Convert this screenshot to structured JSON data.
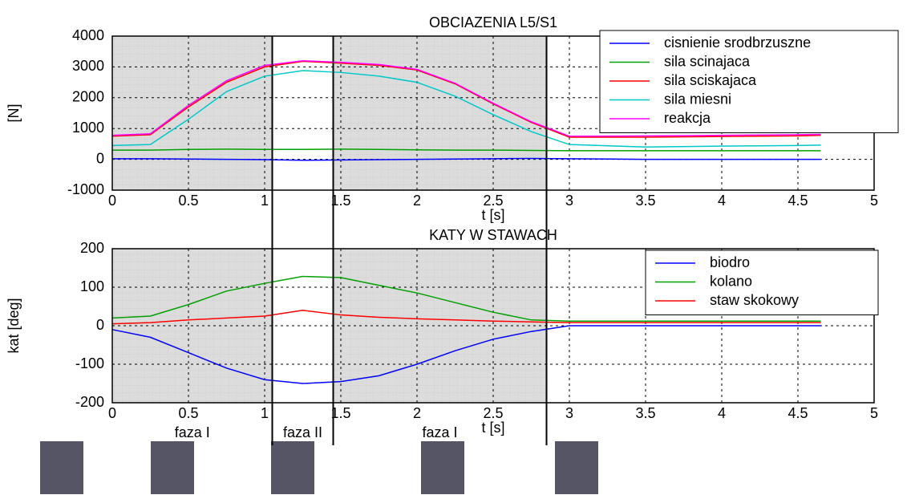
{
  "chart_data": [
    {
      "type": "line",
      "title": "OBCIAZENIA L5/S1",
      "xlabel": "t [s]",
      "ylabel": "[N]",
      "x": [
        0,
        0.25,
        0.5,
        0.75,
        1,
        1.25,
        1.5,
        1.75,
        2,
        2.25,
        2.5,
        2.75,
        3,
        3.5,
        4,
        4.5,
        4.65
      ],
      "series": [
        {
          "name": "cisnienie srodbrzuszne",
          "color": "#0000ff",
          "values": [
            20,
            20,
            10,
            0,
            -10,
            -30,
            -20,
            -10,
            0,
            10,
            20,
            30,
            20,
            0,
            0,
            0,
            0
          ]
        },
        {
          "name": "sila scinajaca",
          "color": "#00a000",
          "values": [
            300,
            300,
            320,
            330,
            320,
            320,
            330,
            320,
            310,
            300,
            300,
            290,
            280,
            280,
            280,
            280,
            280
          ]
        },
        {
          "name": "sila sciskajaca",
          "color": "#ff0000",
          "values": [
            750,
            800,
            1700,
            2500,
            3000,
            3180,
            3120,
            3050,
            2900,
            2450,
            1800,
            1200,
            720,
            720,
            740,
            760,
            780
          ]
        },
        {
          "name": "sila miesni",
          "color": "#00c8c8",
          "values": [
            450,
            480,
            1300,
            2200,
            2700,
            2880,
            2820,
            2700,
            2500,
            2050,
            1450,
            900,
            480,
            400,
            430,
            450,
            460
          ]
        },
        {
          "name": "reakcja",
          "color": "#ff00ff",
          "values": [
            780,
            830,
            1750,
            2550,
            3050,
            3200,
            3150,
            3080,
            2920,
            2470,
            1820,
            1220,
            750,
            760,
            780,
            800,
            810
          ]
        }
      ],
      "xlim": [
        0,
        5
      ],
      "xticks": [
        0,
        0.5,
        1,
        1.5,
        2,
        2.5,
        3,
        3.5,
        4,
        4.5,
        5
      ],
      "ylim": [
        -1000,
        4000
      ],
      "yticks": [
        -1000,
        0,
        1000,
        2000,
        3000,
        4000
      ],
      "grid": true,
      "legend": "upper right",
      "shaded_regions": [
        [
          0,
          1.05
        ],
        [
          1.45,
          2.85
        ]
      ]
    },
    {
      "type": "line",
      "title": "KATY W STAWACH",
      "xlabel": "t [s]",
      "ylabel": "kat [deg]",
      "x": [
        0,
        0.25,
        0.5,
        0.75,
        1,
        1.25,
        1.5,
        1.75,
        2,
        2.25,
        2.5,
        2.75,
        3,
        3.5,
        4,
        4.5,
        4.65
      ],
      "series": [
        {
          "name": "biodro",
          "color": "#0000ff",
          "values": [
            -10,
            -30,
            -70,
            -110,
            -140,
            -150,
            -145,
            -130,
            -100,
            -65,
            -35,
            -15,
            0,
            0,
            0,
            0,
            0
          ]
        },
        {
          "name": "kolano",
          "color": "#00a000",
          "values": [
            20,
            25,
            55,
            90,
            110,
            128,
            125,
            105,
            85,
            60,
            35,
            15,
            12,
            12,
            12,
            12,
            12
          ]
        },
        {
          "name": "staw skokowy",
          "color": "#ff0000",
          "values": [
            5,
            8,
            15,
            20,
            25,
            40,
            28,
            22,
            18,
            15,
            12,
            10,
            8,
            8,
            8,
            8,
            8
          ]
        }
      ],
      "xlim": [
        0,
        5
      ],
      "xticks": [
        0,
        0.5,
        1,
        1.5,
        2,
        2.5,
        3,
        3.5,
        4,
        4.5,
        5
      ],
      "ylim": [
        -200,
        200
      ],
      "yticks": [
        -200,
        -100,
        0,
        100,
        200
      ],
      "grid": true,
      "legend": "upper right",
      "shaded_regions": [
        [
          0,
          1.05
        ],
        [
          1.45,
          2.85
        ]
      ]
    }
  ],
  "phases": {
    "boundaries": [
      1.05,
      1.45,
      2.85
    ],
    "labels": [
      "faza I",
      "faza II",
      "faza I"
    ]
  }
}
